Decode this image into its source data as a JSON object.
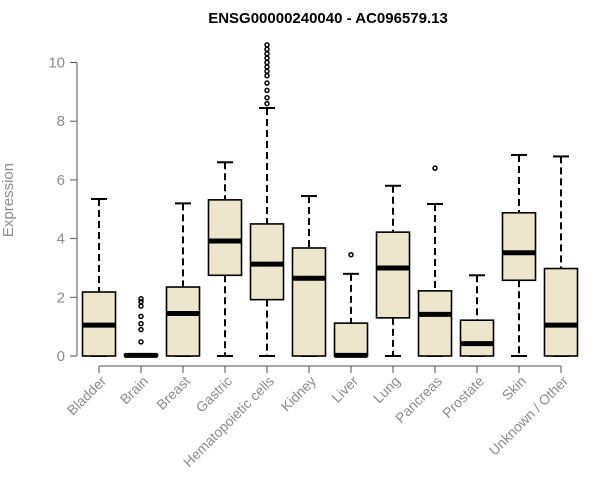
{
  "chart_data": {
    "type": "boxplot",
    "title": "ENSG00000240040 - AC096579.13",
    "xlabel": "",
    "ylabel": "Expression",
    "ylim": [
      0,
      10.5
    ],
    "yticks": [
      0,
      2,
      4,
      6,
      8,
      10
    ],
    "grid": false,
    "legend": "none",
    "colors": {
      "box_fill": "#ede6cc",
      "stroke": "#000000",
      "axis": "#555555",
      "text_muted": "#8c8c8c"
    },
    "categories": [
      "Bladder",
      "Brain",
      "Breast",
      "Gastric",
      "Hematopoietic cells",
      "Kidney",
      "Liver",
      "Lung",
      "Pancreas",
      "Prostate",
      "Skin",
      "Unknown / Other"
    ],
    "boxes": [
      {
        "category": "Bladder",
        "min": 0,
        "q1": 0,
        "median": 1.05,
        "q3": 2.18,
        "max": 5.35,
        "outliers": []
      },
      {
        "category": "Brain",
        "min": 0,
        "q1": 0,
        "median": 0.02,
        "q3": 0.05,
        "max": 0.05,
        "outliers": [
          0.48,
          0.9,
          1.1,
          1.35,
          1.7,
          1.85,
          1.95
        ]
      },
      {
        "category": "Breast",
        "min": 0,
        "q1": 0,
        "median": 1.45,
        "q3": 2.35,
        "max": 5.2,
        "outliers": []
      },
      {
        "category": "Gastric",
        "min": 0,
        "q1": 2.75,
        "median": 3.92,
        "q3": 5.32,
        "max": 6.6,
        "outliers": []
      },
      {
        "category": "Hematopoietic cells",
        "min": 0,
        "q1": 1.92,
        "median": 3.13,
        "q3": 4.5,
        "max": 8.45,
        "outliers": [
          8.6,
          8.8,
          9.05,
          9.3,
          9.55,
          9.7,
          9.85,
          10.0,
          10.15,
          10.3,
          10.45,
          10.6
        ]
      },
      {
        "category": "Kidney",
        "min": 0,
        "q1": 0,
        "median": 2.65,
        "q3": 3.68,
        "max": 5.45,
        "outliers": []
      },
      {
        "category": "Liver",
        "min": 0,
        "q1": 0,
        "median": 0.02,
        "q3": 1.12,
        "max": 2.8,
        "outliers": [
          3.45
        ]
      },
      {
        "category": "Lung",
        "min": 0,
        "q1": 1.3,
        "median": 3.0,
        "q3": 4.22,
        "max": 5.8,
        "outliers": []
      },
      {
        "category": "Pancreas",
        "min": 0,
        "q1": 0,
        "median": 1.42,
        "q3": 2.22,
        "max": 5.18,
        "outliers": [
          6.4
        ]
      },
      {
        "category": "Prostate",
        "min": 0,
        "q1": 0,
        "median": 0.42,
        "q3": 1.22,
        "max": 2.75,
        "outliers": []
      },
      {
        "category": "Skin",
        "min": 0,
        "q1": 2.58,
        "median": 3.52,
        "q3": 4.88,
        "max": 6.85,
        "outliers": []
      },
      {
        "category": "Unknown / Other",
        "min": 0,
        "q1": 0,
        "median": 1.05,
        "q3": 2.98,
        "max": 6.8,
        "outliers": []
      }
    ]
  }
}
